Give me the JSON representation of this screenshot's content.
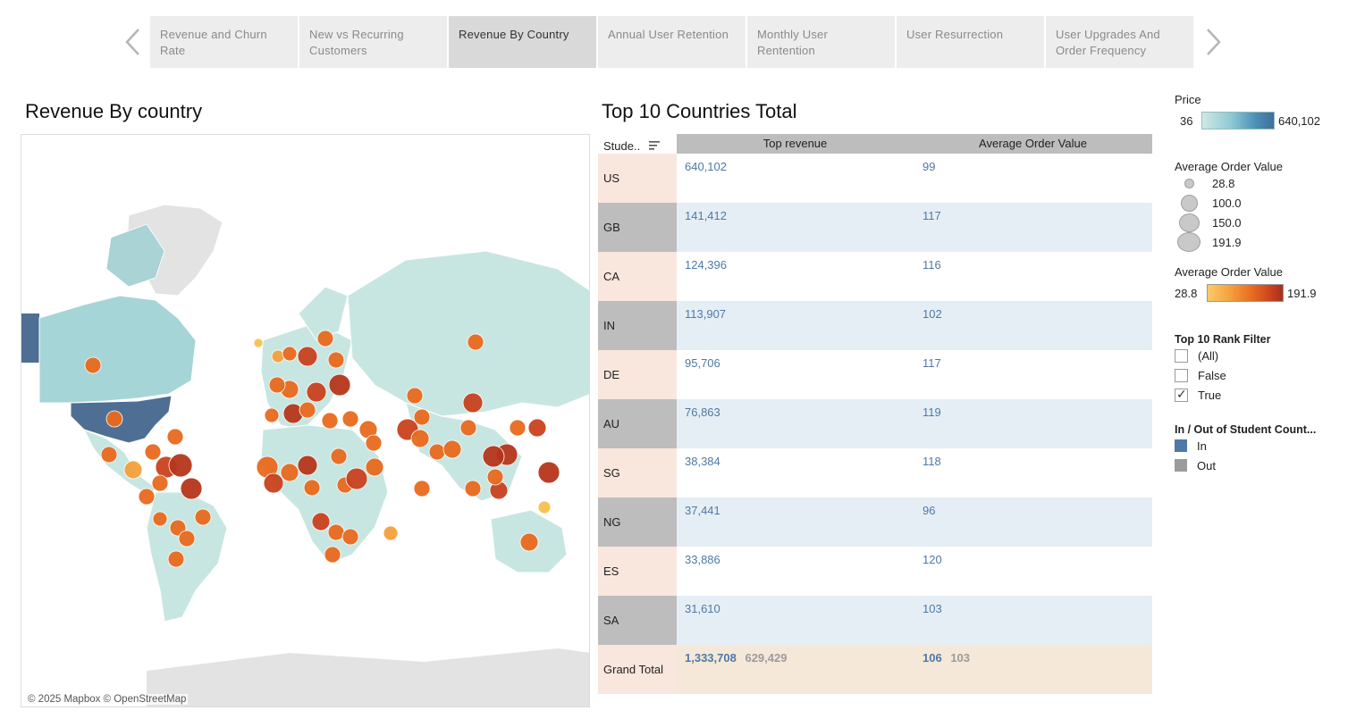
{
  "tabs": [
    {
      "label": "Revenue and Churn Rate",
      "active": false
    },
    {
      "label": "New vs Recurring Customers",
      "active": false
    },
    {
      "label": "Revenue By Country",
      "active": true
    },
    {
      "label": "Annual User Retention",
      "active": false
    },
    {
      "label": "Monthly User Rentention",
      "active": false
    },
    {
      "label": "User Resurrection",
      "active": false
    },
    {
      "label": "User Upgrades And Order Frequency",
      "active": false
    }
  ],
  "nav": {
    "prev_icon": "chevron-left-icon",
    "next_icon": "chevron-right-icon"
  },
  "map_section": {
    "title": "Revenue By country",
    "credit": "© 2025 Mapbox  © OpenStreetMap"
  },
  "table_section": {
    "title": "Top 10 Countries Total",
    "col_first": "Stude..",
    "col_revenue": "Top revenue",
    "col_aov": "Average Order Value",
    "rows": [
      {
        "country": "US",
        "revenue": "640,102",
        "aov": "99"
      },
      {
        "country": "GB",
        "revenue": "141,412",
        "aov": "117"
      },
      {
        "country": "CA",
        "revenue": "124,396",
        "aov": "116"
      },
      {
        "country": "IN",
        "revenue": "113,907",
        "aov": "102"
      },
      {
        "country": "DE",
        "revenue": "95,706",
        "aov": "117"
      },
      {
        "country": "AU",
        "revenue": "76,863",
        "aov": "119"
      },
      {
        "country": "SG",
        "revenue": "38,384",
        "aov": "118"
      },
      {
        "country": "NG",
        "revenue": "37,441",
        "aov": "96"
      },
      {
        "country": "ES",
        "revenue": "33,886",
        "aov": "120"
      },
      {
        "country": "SA",
        "revenue": "31,610",
        "aov": "103"
      }
    ],
    "total": {
      "label": "Grand Total",
      "revenue": "1,333,708",
      "revenue_sub": "629,429",
      "aov": "106",
      "aov_sub": "103"
    }
  },
  "legends": {
    "price": {
      "title": "Price",
      "min": "36",
      "max": "640,102"
    },
    "size": {
      "title": "Average Order Value",
      "items": [
        "28.8",
        "100.0",
        "150.0",
        "191.9"
      ]
    },
    "color": {
      "title": "Average Order Value",
      "min": "28.8",
      "max": "191.9"
    },
    "filter": {
      "title": "Top 10 Rank Filter",
      "items": [
        {
          "label": "(All)",
          "checked": false
        },
        {
          "label": "False",
          "checked": false
        },
        {
          "label": "True",
          "checked": true
        }
      ]
    },
    "inout": {
      "title": "In / Out of Student Count...",
      "items": [
        {
          "label": "In",
          "color": "#4e79a7"
        },
        {
          "label": "Out",
          "color": "#9b9b9b"
        }
      ]
    }
  },
  "colors": {
    "accent_blue": "#4e79a7",
    "header_gray": "#bdbdbd",
    "row_alt": "#e6eef5",
    "country_cell": "#f9e6dd",
    "total_bg": "#f5e8d8"
  }
}
